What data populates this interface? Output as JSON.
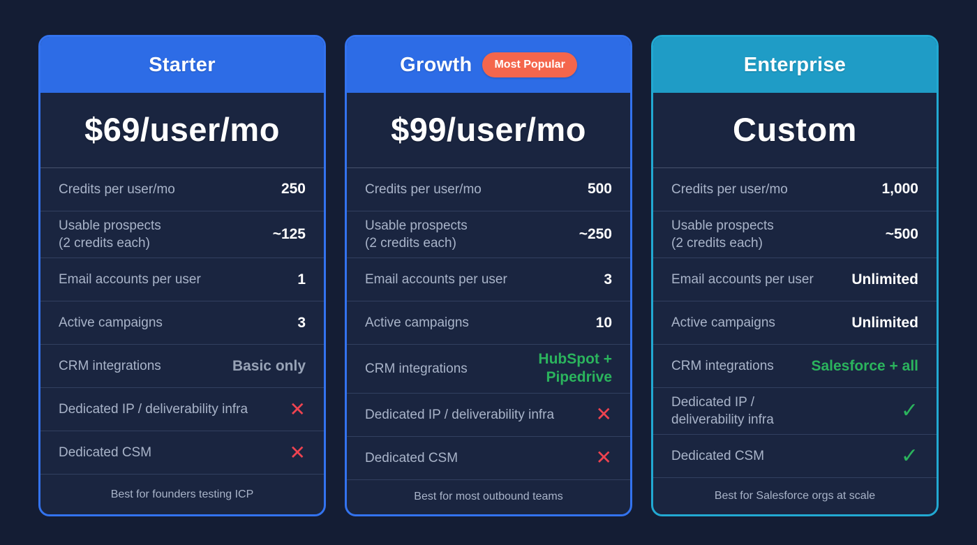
{
  "colors": {
    "page_background": "#141d34",
    "card_background": "#1a2540",
    "blue_accent": "#2d6ce6",
    "teal_accent": "#1f9cc6",
    "badge_coral": "#f4664c",
    "green": "#2bb45d",
    "red": "#ee4350",
    "label_gray": "#a9b4c9"
  },
  "plans": [
    {
      "id": "starter",
      "name": "Starter",
      "badge": null,
      "header_color": "#2d6ce6",
      "border_color": "#3373ef",
      "price": "$69/user/mo",
      "rows": [
        {
          "label": "Credits per user/mo",
          "value": "250",
          "style": "default"
        },
        {
          "label": "Usable prospects\n(2 credits each)",
          "value": "~125",
          "style": "default"
        },
        {
          "label": "Email accounts per user",
          "value": "1",
          "style": "default"
        },
        {
          "label": "Active campaigns",
          "value": "3",
          "style": "default"
        },
        {
          "label": "CRM integrations",
          "value": "Basic only",
          "style": "muted"
        },
        {
          "label": "Dedicated IP / deliverability infra",
          "value": "✕",
          "style": "cross"
        },
        {
          "label": "Dedicated CSM",
          "value": "✕",
          "style": "cross"
        }
      ],
      "footer": "Best for founders testing ICP"
    },
    {
      "id": "growth",
      "name": "Growth",
      "badge": "Most Popular",
      "header_color": "#2d6ce6",
      "border_color": "#3373ef",
      "price": "$99/user/mo",
      "rows": [
        {
          "label": "Credits per user/mo",
          "value": "500",
          "style": "default"
        },
        {
          "label": "Usable prospects\n(2 credits each)",
          "value": "~250",
          "style": "default"
        },
        {
          "label": "Email accounts per user",
          "value": "3",
          "style": "default"
        },
        {
          "label": "Active campaigns",
          "value": "10",
          "style": "default"
        },
        {
          "label": "CRM integrations",
          "value": "HubSpot +\nPipedrive",
          "style": "green"
        },
        {
          "label": "Dedicated IP / deliverability infra",
          "value": "✕",
          "style": "cross"
        },
        {
          "label": "Dedicated CSM",
          "value": "✕",
          "style": "cross"
        }
      ],
      "footer": "Best for most outbound teams"
    },
    {
      "id": "enterprise",
      "name": "Enterprise",
      "badge": null,
      "header_color": "#1f9cc6",
      "border_color": "#22a9d2",
      "price": "Custom",
      "rows": [
        {
          "label": "Credits per user/mo",
          "value": "1,000",
          "style": "default"
        },
        {
          "label": "Usable prospects\n(2 credits each)",
          "value": "~500",
          "style": "default"
        },
        {
          "label": "Email accounts per user",
          "value": "Unlimited",
          "style": "default"
        },
        {
          "label": "Active campaigns",
          "value": "Unlimited",
          "style": "default"
        },
        {
          "label": "CRM integrations",
          "value": "Salesforce + all",
          "style": "green"
        },
        {
          "label": "Dedicated IP /\ndeliverability infra",
          "value": "✓",
          "style": "check"
        },
        {
          "label": "Dedicated CSM",
          "value": "✓",
          "style": "check"
        }
      ],
      "footer": "Best for Salesforce orgs at scale"
    }
  ]
}
